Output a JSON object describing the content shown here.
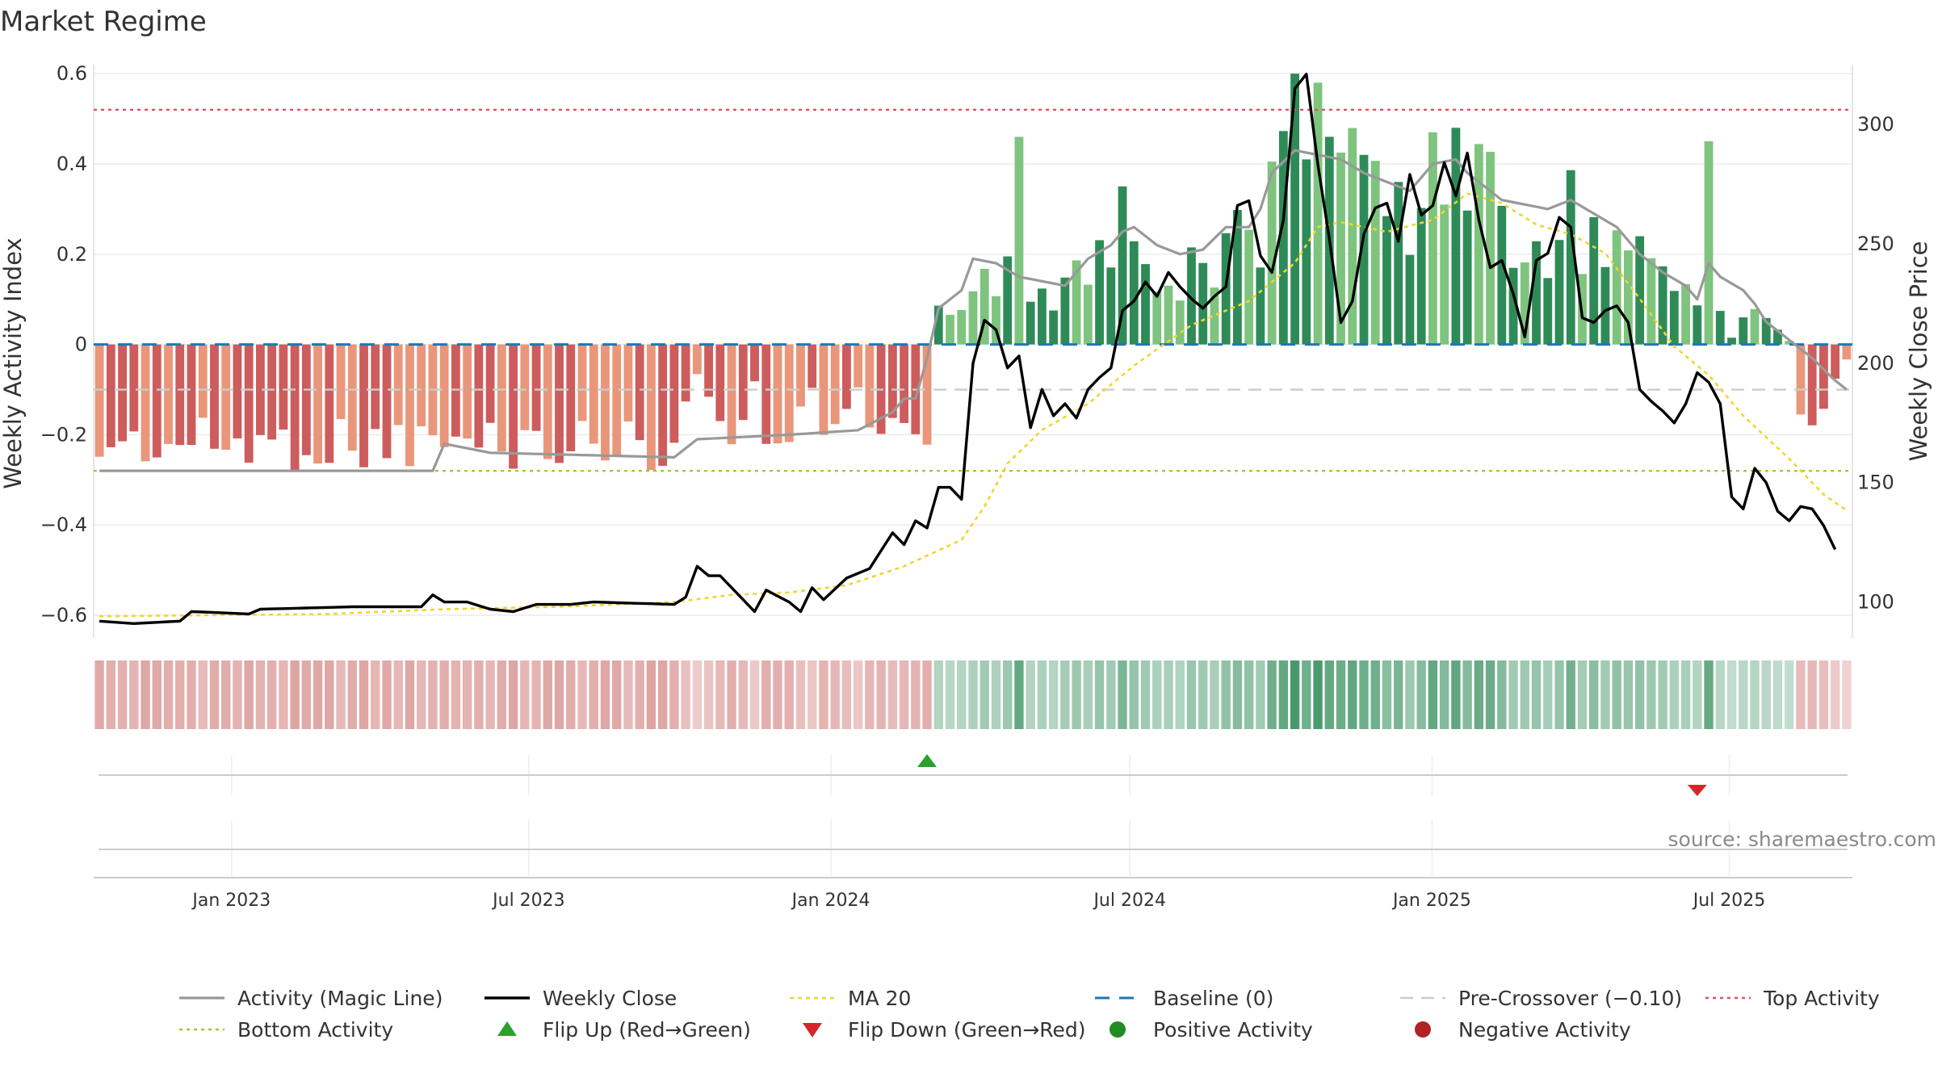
{
  "chart_data": {
    "type": "bar",
    "title": "Market Regime",
    "ylabel_left": "Weekly Activity Index",
    "ylabel_right": "Weekly Close Price",
    "ylim_left": [
      -0.65,
      0.62
    ],
    "ylim_right": [
      85,
      325
    ],
    "yticks_left": [
      {
        "value": 0.6,
        "label": "0.6"
      },
      {
        "value": 0.4,
        "label": "0.4"
      },
      {
        "value": 0.2,
        "label": "0.2"
      },
      {
        "value": 0,
        "label": "0"
      },
      {
        "value": -0.2,
        "label": "−0.2"
      },
      {
        "value": -0.4,
        "label": "−0.4"
      },
      {
        "value": -0.6,
        "label": "−0.6"
      }
    ],
    "yticks_right": [
      {
        "value": 300,
        "label": "300"
      },
      {
        "value": 250,
        "label": "250"
      },
      {
        "value": 200,
        "label": "200"
      },
      {
        "value": 150,
        "label": "150"
      },
      {
        "value": 100,
        "label": "100"
      }
    ],
    "x_start": "2022-10-09",
    "x_end": "2025-09-14",
    "week_count": 153,
    "xticks": [
      {
        "date": "2023-01-01",
        "label": "Jan 2023"
      },
      {
        "date": "2023-07-01",
        "label": "Jul 2023"
      },
      {
        "date": "2024-01-01",
        "label": "Jan 2024"
      },
      {
        "date": "2024-07-01",
        "label": "Jul 2024"
      },
      {
        "date": "2025-01-01",
        "label": "Jan 2025"
      },
      {
        "date": "2025-07-01",
        "label": "Jul 2025"
      }
    ],
    "reference_lines": {
      "baseline": 0,
      "pre_crossover": -0.1,
      "top_activity": 0.52,
      "bottom_activity": -0.28
    },
    "activity_keyframes": [
      [
        0,
        -0.28
      ],
      [
        29,
        -0.28
      ],
      [
        30,
        -0.22
      ],
      [
        34,
        -0.24
      ],
      [
        50,
        -0.25
      ],
      [
        52,
        -0.21
      ],
      [
        60,
        -0.2
      ],
      [
        66,
        -0.19
      ],
      [
        69,
        -0.15
      ],
      [
        70,
        -0.12
      ],
      [
        71,
        -0.12
      ],
      [
        72,
        -0.03
      ],
      [
        73,
        0.08
      ],
      [
        75,
        0.12
      ],
      [
        76,
        0.19
      ],
      [
        78,
        0.18
      ],
      [
        80,
        0.15
      ],
      [
        82,
        0.14
      ],
      [
        84,
        0.13
      ],
      [
        86,
        0.19
      ],
      [
        88,
        0.22
      ],
      [
        89,
        0.25
      ],
      [
        90,
        0.26
      ],
      [
        92,
        0.22
      ],
      [
        94,
        0.2
      ],
      [
        96,
        0.21
      ],
      [
        98,
        0.26
      ],
      [
        100,
        0.26
      ],
      [
        101,
        0.3
      ],
      [
        102,
        0.38
      ],
      [
        104,
        0.43
      ],
      [
        106,
        0.42
      ],
      [
        108,
        0.41
      ],
      [
        110,
        0.38
      ],
      [
        112,
        0.36
      ],
      [
        114,
        0.34
      ],
      [
        116,
        0.4
      ],
      [
        118,
        0.41
      ],
      [
        119,
        0.38
      ],
      [
        120,
        0.36
      ],
      [
        122,
        0.32
      ],
      [
        124,
        0.31
      ],
      [
        126,
        0.3
      ],
      [
        128,
        0.32
      ],
      [
        130,
        0.29
      ],
      [
        132,
        0.26
      ],
      [
        134,
        0.2
      ],
      [
        136,
        0.16
      ],
      [
        138,
        0.13
      ],
      [
        139,
        0.1
      ],
      [
        140,
        0.18
      ],
      [
        141,
        0.15
      ],
      [
        143,
        0.12
      ],
      [
        144,
        0.09
      ],
      [
        145,
        0.05
      ],
      [
        147,
        0.01
      ],
      [
        149,
        -0.03
      ],
      [
        151,
        -0.08
      ],
      [
        153,
        -0.12
      ]
    ],
    "close_keyframes": [
      [
        0,
        92
      ],
      [
        3,
        91
      ],
      [
        7,
        92
      ],
      [
        8,
        96
      ],
      [
        13,
        95
      ],
      [
        14,
        97
      ],
      [
        22,
        98
      ],
      [
        28,
        98
      ],
      [
        29,
        103
      ],
      [
        30,
        100
      ],
      [
        32,
        100
      ],
      [
        34,
        97
      ],
      [
        36,
        96
      ],
      [
        38,
        99
      ],
      [
        41,
        99
      ],
      [
        43,
        100
      ],
      [
        50,
        99
      ],
      [
        51,
        102
      ],
      [
        52,
        115
      ],
      [
        53,
        111
      ],
      [
        54,
        111
      ],
      [
        56,
        101
      ],
      [
        57,
        96
      ],
      [
        58,
        105
      ],
      [
        60,
        100
      ],
      [
        61,
        96
      ],
      [
        62,
        106
      ],
      [
        63,
        101
      ],
      [
        65,
        110
      ],
      [
        67,
        114
      ],
      [
        69,
        129
      ],
      [
        70,
        124
      ],
      [
        71,
        134
      ],
      [
        72,
        131
      ],
      [
        73,
        148
      ],
      [
        74,
        148
      ],
      [
        75,
        143
      ],
      [
        76,
        200
      ],
      [
        77,
        218
      ],
      [
        78,
        214
      ],
      [
        79,
        198
      ],
      [
        80,
        203
      ],
      [
        81,
        173
      ],
      [
        82,
        189
      ],
      [
        83,
        178
      ],
      [
        84,
        183
      ],
      [
        85,
        177
      ],
      [
        86,
        189
      ],
      [
        87,
        194
      ],
      [
        88,
        198
      ],
      [
        89,
        222
      ],
      [
        90,
        226
      ],
      [
        91,
        234
      ],
      [
        92,
        228
      ],
      [
        93,
        238
      ],
      [
        94,
        232
      ],
      [
        95,
        227
      ],
      [
        96,
        223
      ],
      [
        97,
        228
      ],
      [
        98,
        232
      ],
      [
        99,
        266
      ],
      [
        100,
        268
      ],
      [
        101,
        245
      ],
      [
        102,
        238
      ],
      [
        103,
        260
      ],
      [
        104,
        315
      ],
      [
        105,
        321
      ],
      [
        106,
        283
      ],
      [
        107,
        252
      ],
      [
        108,
        217
      ],
      [
        109,
        226
      ],
      [
        110,
        254
      ],
      [
        111,
        265
      ],
      [
        112,
        267
      ],
      [
        113,
        251
      ],
      [
        114,
        279
      ],
      [
        115,
        262
      ],
      [
        116,
        266
      ],
      [
        117,
        284
      ],
      [
        118,
        270
      ],
      [
        119,
        288
      ],
      [
        120,
        260
      ],
      [
        121,
        240
      ],
      [
        122,
        243
      ],
      [
        123,
        229
      ],
      [
        124,
        211
      ],
      [
        125,
        243
      ],
      [
        126,
        246
      ],
      [
        127,
        261
      ],
      [
        128,
        257
      ],
      [
        129,
        219
      ],
      [
        130,
        217
      ],
      [
        131,
        222
      ],
      [
        132,
        224
      ],
      [
        133,
        217
      ],
      [
        134,
        189
      ],
      [
        135,
        184
      ],
      [
        136,
        180
      ],
      [
        137,
        175
      ],
      [
        138,
        183
      ],
      [
        139,
        196
      ],
      [
        140,
        192
      ],
      [
        141,
        183
      ],
      [
        142,
        144
      ],
      [
        143,
        139
      ],
      [
        144,
        156
      ],
      [
        145,
        150
      ],
      [
        146,
        138
      ],
      [
        147,
        134
      ],
      [
        148,
        140
      ],
      [
        149,
        139
      ],
      [
        150,
        132
      ],
      [
        151,
        122
      ]
    ],
    "ma_keyframes": [
      [
        0,
        94
      ],
      [
        20,
        95
      ],
      [
        30,
        97
      ],
      [
        40,
        98
      ],
      [
        50,
        100
      ],
      [
        55,
        103
      ],
      [
        60,
        104
      ],
      [
        65,
        107
      ],
      [
        70,
        115
      ],
      [
        75,
        126
      ],
      [
        77,
        140
      ],
      [
        79,
        158
      ],
      [
        82,
        172
      ],
      [
        86,
        183
      ],
      [
        90,
        199
      ],
      [
        95,
        216
      ],
      [
        100,
        226
      ],
      [
        104,
        242
      ],
      [
        106,
        257
      ],
      [
        108,
        259
      ],
      [
        112,
        255
      ],
      [
        116,
        260
      ],
      [
        119,
        271
      ],
      [
        122,
        267
      ],
      [
        125,
        258
      ],
      [
        128,
        254
      ],
      [
        131,
        246
      ],
      [
        134,
        227
      ],
      [
        137,
        207
      ],
      [
        140,
        195
      ],
      [
        143,
        178
      ],
      [
        147,
        160
      ],
      [
        150,
        145
      ],
      [
        153,
        135
      ]
    ],
    "positive_peaks": [
      0.6,
      0.58,
      0.48,
      0.47,
      0.46,
      0.46,
      0.45,
      0.42,
      0.41,
      0.36,
      0.35
    ],
    "legend": [
      "Activity (Magic Line)",
      "Weekly Close",
      "MA 20",
      "Baseline (0)",
      "Pre-Crossover (−0.10)",
      "Top Activity",
      "Bottom Activity",
      "Flip Up (Red→Green)",
      "Flip Down (Green→Red)",
      "Positive Activity",
      "Negative Activity"
    ],
    "flip_up_week": 72,
    "flip_down_week": 139,
    "source": "source: sharemaestro.com"
  },
  "colors": {
    "pos_dark": "#2e8b57",
    "pos_light": "#7ec47e",
    "neg_dark": "#cd5c5c",
    "neg_light": "#e9967a",
    "activity": "#999999",
    "close": "#000000",
    "ma": "#f2d52c",
    "baseline": "#1f77b4",
    "pre": "#cccccc",
    "top": "#e05060",
    "bottom": "#9acd32",
    "flip_up": "#2ca02c",
    "flip_down": "#d62728",
    "pos_dot": "#228b22",
    "neg_dot": "#b22222"
  }
}
